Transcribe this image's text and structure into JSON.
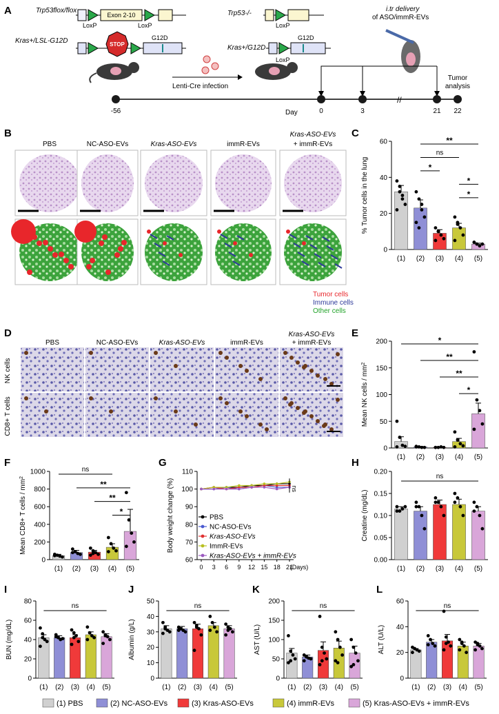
{
  "panel_letters": [
    "A",
    "B",
    "C",
    "D",
    "E",
    "F",
    "G",
    "H",
    "I",
    "J",
    "K",
    "L"
  ],
  "colors": {
    "g1": "#d0d0d0",
    "g2": "#8f8fd6",
    "g3": "#f03a3a",
    "g4": "#c8c83a",
    "g5": "#d9a6d9",
    "tumor": "#e8262b",
    "immune": "#2e3a9a",
    "other": "#22a32a"
  },
  "panel_a": {
    "trp53_floxflox": "Trp53flox/flox",
    "trp53_null": "Trp53-/-",
    "exon": "Exon 2-10",
    "loxp": "LoxP",
    "kras_lsl": "Kras+/LSL-G12D",
    "kras_g12d": "Kras+/G12D",
    "stop": "STOP",
    "g12d": "G12D",
    "lenti": "Lenti-Cre infection",
    "itr": "i.tr delivery",
    "itr2": "of ASO/immR-EVs",
    "tumor": "Tumor",
    "analysis": "analysis",
    "day": "Day",
    "days": [
      "-56",
      "0",
      "3",
      "21",
      "22"
    ]
  },
  "panel_b": {
    "headers": [
      "PBS",
      "NC-ASO-EVs",
      "Kras-ASO-EVs",
      "immR-EVs",
      "Kras-ASO-EVs",
      "+ immR-EVs"
    ],
    "legend": [
      "Tumor cells",
      "Immune cells",
      "Other cells"
    ]
  },
  "panel_d": {
    "headers": [
      "PBS",
      "NC-ASO-EVs",
      "Kras-ASO-EVs",
      "immR-EVs",
      "Kras-ASO-EVs",
      "+ immR-EVs"
    ],
    "row_labels": [
      "NK cells",
      "CD8+ T cells"
    ]
  },
  "chart_data": [
    {
      "id": "C",
      "type": "bar",
      "ylabel": "% Tumor cells in the lung",
      "ylim": [
        0,
        60
      ],
      "yticks": [
        "0",
        "20",
        "40",
        "60"
      ],
      "categories": [
        "(1)",
        "(2)",
        "(3)",
        "(4)",
        "(5)"
      ],
      "values": [
        32,
        23,
        9,
        12,
        3
      ],
      "errors": [
        3.5,
        4.5,
        2,
        2.5,
        0.5
      ],
      "points": [
        [
          38,
          32,
          30,
          25,
          22,
          35,
          28
        ],
        [
          32,
          28,
          22,
          18,
          15,
          12,
          25
        ],
        [
          12,
          10,
          8,
          6,
          5,
          10
        ],
        [
          18,
          15,
          12,
          8,
          5,
          14
        ],
        [
          4,
          3,
          2,
          3,
          4,
          3
        ]
      ],
      "sig": [
        {
          "a": 2,
          "b": 5,
          "label": "**"
        },
        {
          "a": 2,
          "b": 4,
          "label": "ns"
        },
        {
          "a": 2,
          "b": 3,
          "label": "*"
        },
        {
          "a": 4,
          "b": 5,
          "label": "*"
        },
        {
          "a": 4,
          "b": 5,
          "label": "*"
        }
      ]
    },
    {
      "id": "E",
      "type": "bar",
      "ylabel": "Mean NK cells / mm",
      "ylim": [
        0,
        200
      ],
      "yticks": [
        "0",
        "50",
        "100",
        "150",
        "200"
      ],
      "categories": [
        "(1)",
        "(2)",
        "(3)",
        "(4)",
        "(5)"
      ],
      "values": [
        12,
        2,
        1,
        12,
        64
      ],
      "errors": [
        9,
        1,
        0.5,
        6,
        20
      ],
      "points": [
        [
          50,
          20,
          5,
          3,
          2
        ],
        [
          3,
          2,
          1,
          1,
          2
        ],
        [
          1,
          1,
          2,
          1,
          1
        ],
        [
          30,
          15,
          8,
          4,
          2
        ],
        [
          180,
          90,
          70,
          45,
          35
        ]
      ],
      "sig": [
        {
          "a": 1,
          "b": 5,
          "label": "*"
        },
        {
          "a": 2,
          "b": 5,
          "label": "**"
        },
        {
          "a": 3,
          "b": 5,
          "label": "**"
        },
        {
          "a": 4,
          "b": 5,
          "label": "*"
        }
      ]
    },
    {
      "id": "F",
      "type": "bar",
      "ylabel": "Mean CD8+ T cells / mm",
      "ylim": [
        0,
        1000
      ],
      "yticks": [
        "0",
        "200",
        "400",
        "600",
        "800",
        "1000"
      ],
      "categories": [
        "(1)",
        "(2)",
        "(3)",
        "(4)",
        "(5)"
      ],
      "values": [
        45,
        80,
        85,
        140,
        320
      ],
      "errors": [
        15,
        25,
        20,
        40,
        250
      ],
      "points": [
        [
          60,
          50,
          40,
          30,
          45
        ],
        [
          120,
          90,
          70,
          60,
          80
        ],
        [
          130,
          100,
          80,
          60,
          50,
          70
        ],
        [
          250,
          180,
          130,
          100,
          90
        ],
        [
          760,
          450,
          300,
          200,
          150
        ]
      ],
      "sig": [
        {
          "a": 1,
          "b": 4,
          "label": "ns"
        },
        {
          "a": 2,
          "b": 5,
          "label": "**"
        },
        {
          "a": 3,
          "b": 5,
          "label": "**"
        },
        {
          "a": 4,
          "b": 5,
          "label": "*"
        }
      ]
    },
    {
      "id": "H",
      "type": "bar",
      "ylabel": "Creatine (mg/dL)",
      "ylim": [
        0,
        0.2
      ],
      "yticks": [
        "0.00",
        "0.05",
        "0.10",
        "0.15",
        "0.20"
      ],
      "categories": [
        "(1)",
        "(2)",
        "(3)",
        "(4)",
        "(5)"
      ],
      "values": [
        0.115,
        0.11,
        0.125,
        0.125,
        0.11
      ],
      "errors": [
        0.005,
        0.01,
        0.01,
        0.012,
        0.01
      ],
      "points": [
        [
          0.12,
          0.11,
          0.115,
          0.12,
          0.11
        ],
        [
          0.13,
          0.12,
          0.1,
          0.07,
          0.12
        ],
        [
          0.14,
          0.13,
          0.12,
          0.1,
          0.13
        ],
        [
          0.15,
          0.14,
          0.12,
          0.1,
          0.13
        ],
        [
          0.13,
          0.12,
          0.1,
          0.07,
          0.11
        ]
      ],
      "sig": [
        {
          "a": 1,
          "b": 5,
          "label": "ns"
        }
      ]
    },
    {
      "id": "I",
      "type": "bar",
      "ylabel": "BUN (mg/dL)",
      "ylim": [
        0,
        80
      ],
      "yticks": [
        "0",
        "20",
        "40",
        "60",
        "80"
      ],
      "categories": [
        "(1)",
        "(2)",
        "(3)",
        "(4)",
        "(5)"
      ],
      "values": [
        42,
        42,
        42,
        45,
        43
      ],
      "errors": [
        3,
        2,
        3,
        3,
        3
      ],
      "points": [
        [
          52,
          46,
          40,
          38,
          33,
          42
        ],
        [
          45,
          42,
          40,
          41,
          43
        ],
        [
          50,
          47,
          44,
          38,
          35,
          42
        ],
        [
          53,
          47,
          44,
          42,
          40
        ],
        [
          48,
          45,
          43,
          40,
          36,
          44
        ]
      ],
      "sig": [
        {
          "a": 1,
          "b": 5,
          "label": "ns"
        }
      ]
    },
    {
      "id": "J",
      "type": "bar",
      "ylabel": "Albumin (g/L)",
      "ylim": [
        0,
        50
      ],
      "yticks": [
        "0",
        "10",
        "20",
        "30",
        "40",
        "50"
      ],
      "categories": [
        "(1)",
        "(2)",
        "(3)",
        "(4)",
        "(5)"
      ],
      "values": [
        32,
        32,
        32,
        34,
        32
      ],
      "errors": [
        2,
        1.5,
        3,
        2,
        2
      ],
      "points": [
        [
          36,
          33,
          31,
          30,
          29,
          32
        ],
        [
          33,
          32,
          31,
          30,
          31
        ],
        [
          36,
          34,
          32,
          28,
          18,
          33
        ],
        [
          40,
          36,
          33,
          30,
          31
        ],
        [
          35,
          33,
          32,
          30,
          28,
          31
        ]
      ],
      "sig": [
        {
          "a": 1,
          "b": 5,
          "label": "ns"
        }
      ]
    },
    {
      "id": "K",
      "type": "bar",
      "ylabel": "AST (U/L)",
      "ylim": [
        0,
        200
      ],
      "yticks": [
        "0",
        "50",
        "100",
        "150",
        "200"
      ],
      "categories": [
        "(1)",
        "(2)",
        "(3)",
        "(4)",
        "(5)"
      ],
      "values": [
        65,
        55,
        72,
        78,
        65
      ],
      "errors": [
        12,
        5,
        22,
        18,
        18
      ],
      "points": [
        [
          110,
          70,
          60,
          50,
          40,
          45
        ],
        [
          60,
          55,
          52,
          50,
          45
        ],
        [
          160,
          80,
          65,
          50,
          35,
          45
        ],
        [
          120,
          100,
          80,
          60,
          45,
          40
        ],
        [
          100,
          80,
          65,
          45,
          30,
          35
        ]
      ],
      "sig": [
        {
          "a": 1,
          "b": 5,
          "label": "ns"
        }
      ]
    },
    {
      "id": "L",
      "type": "bar",
      "ylabel": "ALT (U/L)",
      "ylim": [
        0,
        60
      ],
      "yticks": [
        "0",
        "20",
        "40",
        "60"
      ],
      "categories": [
        "(1)",
        "(2)",
        "(3)",
        "(4)",
        "(5)"
      ],
      "values": [
        22,
        28,
        29,
        25,
        25
      ],
      "errors": [
        1,
        2,
        5,
        3,
        2
      ],
      "points": [
        [
          24,
          23,
          22,
          21,
          20
        ],
        [
          33,
          30,
          27,
          25,
          26
        ],
        [
          52,
          32,
          28,
          25,
          22,
          27
        ],
        [
          30,
          28,
          25,
          20,
          22,
          27
        ],
        [
          28,
          27,
          25,
          23,
          22,
          26
        ]
      ],
      "sig": [
        {
          "a": 1,
          "b": 5,
          "label": "ns"
        }
      ]
    },
    {
      "id": "G",
      "type": "line",
      "ylabel": "Body weight change (%)",
      "xlabel": "(Days)",
      "ylim": [
        60,
        110
      ],
      "yticks": [
        "60",
        "70",
        "80",
        "90",
        "100",
        "110"
      ],
      "x": [
        0,
        3,
        6,
        9,
        12,
        15,
        18,
        21
      ],
      "series": [
        {
          "name": "PBS",
          "color": "#000000",
          "values": [
            100,
            101,
            101,
            101,
            102,
            102,
            103,
            103
          ]
        },
        {
          "name": "NC-ASO-EVs",
          "color": "#4a5ad0",
          "values": [
            100,
            100,
            101,
            100,
            101,
            102,
            101,
            101
          ]
        },
        {
          "name": "Kras-ASO-EVs",
          "color": "#e03030",
          "values": [
            100,
            101,
            100,
            101,
            101,
            102,
            102,
            102
          ]
        },
        {
          "name": "ImmR-EVs",
          "color": "#b8c020",
          "values": [
            100,
            101,
            101,
            102,
            102,
            103,
            103,
            104
          ]
        },
        {
          "name": "Kras-ASO-EVs + immR-EVs",
          "color": "#9b59c0",
          "values": [
            100,
            100,
            100,
            100,
            101,
            101,
            100,
            101
          ]
        }
      ],
      "sig_label": "ns"
    }
  ],
  "legend_bottom": [
    "(1) PBS",
    "(2) NC-ASO-EVs",
    "(3) Kras-ASO-EVs",
    "(4) immR-EVs",
    "(5) Kras-ASO-EVs + immR-EVs"
  ]
}
